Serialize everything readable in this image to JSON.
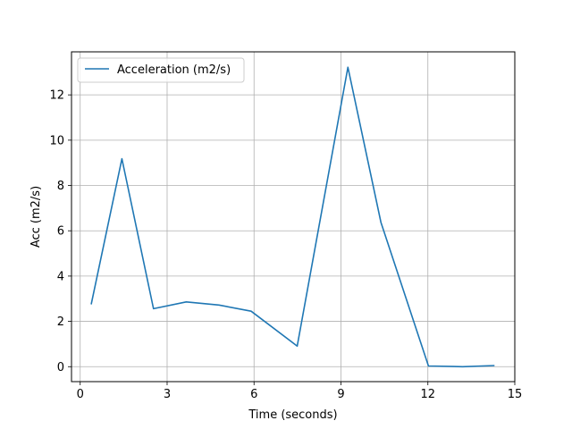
{
  "chart_data": {
    "type": "line",
    "title": "",
    "xlabel": "Time (seconds)",
    "ylabel": "Acc (m2/s)",
    "xlim": [
      -0.3,
      15.0
    ],
    "ylim": [
      -0.66,
      13.9
    ],
    "xticks": [
      0,
      3,
      6,
      9,
      12,
      15
    ],
    "xtick_labels": [
      "0",
      "3",
      "6",
      "9",
      "12",
      "15"
    ],
    "yticks": [
      0,
      2,
      4,
      6,
      8,
      10,
      12
    ],
    "ytick_labels": [
      "0",
      "2",
      "4",
      "6",
      "8",
      "10",
      "12"
    ],
    "grid": true,
    "legend_position": "top-left",
    "series": [
      {
        "name": "Acceleration (m2/s)",
        "color": "#1f77b4",
        "x": [
          0.38,
          1.44,
          2.53,
          3.66,
          4.79,
          5.9,
          7.49,
          9.24,
          10.38,
          12.02,
          13.2,
          14.3
        ],
        "y": [
          2.75,
          9.18,
          2.56,
          2.86,
          2.72,
          2.45,
          0.91,
          13.22,
          6.37,
          0.03,
          0.0,
          0.05
        ]
      }
    ]
  }
}
